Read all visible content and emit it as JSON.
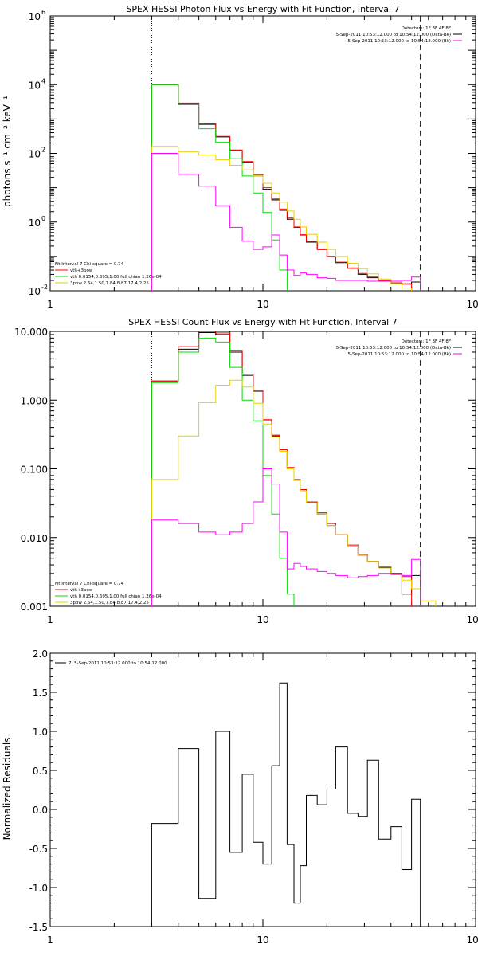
{
  "chart_data": [
    {
      "type": "line",
      "title": "SPEX HESSI Photon Flux vs Energy with Fit Function, Interval 7",
      "ylabel": "photons s⁻¹ cm⁻² keV⁻¹",
      "xlabel": "",
      "x_scale": "log",
      "y_scale": "log",
      "xlim": [
        1,
        100
      ],
      "ylim": [
        0.01,
        1000000
      ],
      "x_ticks": [
        {
          "v": 1,
          "label": "1"
        },
        {
          "v": 10,
          "label": "10"
        },
        {
          "v": 100,
          "label": "100"
        }
      ],
      "y_ticks": [
        {
          "v": 0.01,
          "base": "10",
          "exp": "-2"
        },
        {
          "v": 1,
          "base": "10",
          "exp": "0"
        },
        {
          "v": 100,
          "base": "10",
          "exp": "2"
        },
        {
          "v": 10000,
          "base": "10",
          "exp": "4"
        },
        {
          "v": 1000000,
          "base": "10",
          "exp": "6"
        }
      ],
      "dotted_line_x": 3,
      "dashed_line_x": 55,
      "legend_right": {
        "header": "Detectors: 1F 3F 4F 8F",
        "entries": [
          {
            "label": "5-Sep-2011 10:53:12.000 to 10:54:12.000 (Data-Bk)",
            "color": "#000000"
          },
          {
            "label": "5-Sep-2011 10:53:12.000 to 10:54:12.000 (Bk)",
            "color": "#ff00ff"
          }
        ]
      },
      "legend_left": {
        "header": "Fit Interval  7   Chi-square = 0.74",
        "entries": [
          {
            "label": "vth+3pow",
            "color": "#ff0000"
          },
          {
            "label": "vth 0.0154,0.695,1.00  full chian 1.26e-04",
            "color": "#00dd00"
          },
          {
            "label": "3pow 2.64,1.50,7.84,8.87,17.4,2.25",
            "color": "#e6d200"
          }
        ]
      },
      "bin_edges": [
        3.0,
        4.0,
        5.0,
        6.0,
        7.0,
        8.0,
        9.0,
        10.0,
        11.0,
        12.0,
        13.0,
        14.0,
        15.0,
        16.0,
        18.0,
        20.0,
        22.0,
        25.0,
        28.0,
        31.0,
        35.0,
        40.0,
        45.0,
        50.0,
        55.0,
        65.0,
        80.0
      ],
      "series": [
        {
          "name": "",
          "color": "#000000",
          "values": [
            10000,
            2800,
            700,
            300,
            120,
            55,
            22,
            9,
            4.4,
            2.2,
            1.2,
            0.7,
            0.42,
            0.26,
            0.16,
            0.1,
            0.066,
            0.045,
            0.03,
            0.024,
            0.02,
            0.017,
            0.016,
            0.018
          ]
        },
        {
          "name": "",
          "color": "#ff0000",
          "values": [
            10000,
            2900,
            720,
            310,
            125,
            58,
            24,
            10,
            4.7,
            2.4,
            1.3,
            0.72,
            0.43,
            0.27,
            0.165,
            0.1,
            0.068,
            0.046,
            0.032,
            0.025,
            0.02,
            0.017,
            0.0155
          ]
        },
        {
          "name": "",
          "color": "#00dd00",
          "values": [
            10000,
            2600,
            520,
            210,
            70,
            22,
            7,
            1.9,
            0.3,
            0.04,
            0.004
          ]
        },
        {
          "name": "",
          "color": "#e6d200",
          "values": [
            160,
            110,
            90,
            65,
            45,
            33,
            22,
            13.5,
            7,
            3.8,
            2.1,
            1.2,
            0.72,
            0.44,
            0.26,
            0.16,
            0.1,
            0.063,
            0.044,
            0.031,
            0.022,
            0.016,
            0.012,
            0.009,
            0.007
          ]
        },
        {
          "name": "",
          "color": "#ff00ff",
          "values": [
            100,
            25,
            11,
            3,
            0.7,
            0.28,
            0.16,
            0.19,
            0.42,
            0.11,
            0.04,
            0.028,
            0.033,
            0.03,
            0.024,
            0.023,
            0.02,
            0.02,
            0.02,
            0.019,
            0.019,
            0.019,
            0.02,
            0.025
          ]
        }
      ]
    },
    {
      "type": "line",
      "title": "SPEX HESSI Count Flux vs Energy with Fit Function, Interval 7",
      "ylabel": "",
      "xlabel": "",
      "x_scale": "log",
      "y_scale": "log",
      "xlim": [
        1,
        100
      ],
      "ylim": [
        0.001,
        10
      ],
      "x_ticks": [
        {
          "v": 1,
          "label": "1"
        },
        {
          "v": 10,
          "label": "10"
        },
        {
          "v": 100,
          "label": "100"
        }
      ],
      "y_ticks": [
        {
          "v": 0.001,
          "label": "0.001"
        },
        {
          "v": 0.01,
          "label": "0.010"
        },
        {
          "v": 0.1,
          "label": "0.100"
        },
        {
          "v": 1,
          "label": "1.000"
        },
        {
          "v": 10,
          "label": "10.000"
        }
      ],
      "dotted_line_x": 3,
      "dashed_line_x": 55,
      "legend_right": {
        "header": "Detectors: 1F 3F 4F 8F",
        "entries": [
          {
            "label": "5-Sep-2011 10:53:12.000 to 10:54:12.000 (Data-Bk)",
            "color": "#000000"
          },
          {
            "label": "5-Sep-2011 10:53:12.000 to 10:54:12.000 (Bk)",
            "color": "#ff00ff"
          }
        ]
      },
      "legend_left": {
        "header": "Fit Interval  7   Chi-square = 0.74",
        "entries": [
          {
            "label": "vth+3pow",
            "color": "#ff0000"
          },
          {
            "label": "vth 0.0154,0.695,1.00  full chian 1.26e-04",
            "color": "#00dd00"
          },
          {
            "label": "3pow 2.64,1.50,7.84,8.87,17.4,2.25",
            "color": "#e6d200"
          }
        ]
      },
      "bin_edges": [
        3.0,
        4.0,
        5.0,
        6.0,
        7.0,
        8.0,
        9.0,
        10.0,
        11.0,
        12.0,
        13.0,
        14.0,
        15.0,
        16.0,
        18.0,
        20.0,
        22.0,
        25.0,
        28.0,
        31.0,
        35.0,
        40.0,
        45.0,
        50.0,
        55.0,
        65.0,
        80.0
      ],
      "series": [
        {
          "name": "",
          "color": "#000000",
          "values": [
            1.9,
            5.5,
            9.6,
            9.0,
            5.0,
            2.3,
            1.35,
            0.5,
            0.3,
            0.18,
            0.1,
            0.068,
            0.05,
            0.032,
            0.022,
            0.015,
            0.011,
            0.0075,
            0.0055,
            0.0045,
            0.0037,
            0.003,
            0.0015,
            0.0028
          ]
        },
        {
          "name": "",
          "color": "#ff0000",
          "values": [
            1.9,
            6.0,
            10.2,
            9.5,
            5.3,
            2.4,
            1.4,
            0.52,
            0.31,
            0.19,
            0.105,
            0.07,
            0.05,
            0.033,
            0.023,
            0.016,
            0.011,
            0.0078,
            0.0057,
            0.0045,
            0.0036,
            0.003,
            0.0027
          ]
        },
        {
          "name": "",
          "color": "#00dd00",
          "values": [
            1.8,
            5.0,
            8.0,
            7.0,
            3.0,
            1.0,
            0.5,
            0.08,
            0.022,
            0.005,
            0.0015,
            0.0009
          ]
        },
        {
          "name": "",
          "color": "#e6d200",
          "values": [
            0.07,
            0.3,
            0.92,
            1.65,
            1.95,
            1.55,
            0.9,
            0.45,
            0.29,
            0.18,
            0.1,
            0.068,
            0.048,
            0.032,
            0.022,
            0.015,
            0.011,
            0.0075,
            0.0055,
            0.0045,
            0.0036,
            0.0029,
            0.0024,
            0.0018,
            0.0012,
            0.0009
          ]
        },
        {
          "name": "",
          "color": "#ff00ff",
          "values": [
            0.018,
            0.016,
            0.012,
            0.011,
            0.012,
            0.016,
            0.033,
            0.1,
            0.06,
            0.012,
            0.0035,
            0.0042,
            0.0038,
            0.0035,
            0.0032,
            0.003,
            0.0028,
            0.0026,
            0.0027,
            0.0028,
            0.003,
            0.0029,
            0.0028,
            0.0048
          ]
        }
      ]
    },
    {
      "type": "line",
      "title": "",
      "ylabel": "Normalized Residuals",
      "xlabel": "",
      "x_scale": "log",
      "y_scale": "linear",
      "xlim": [
        1,
        100
      ],
      "ylim": [
        -1.5,
        2.0
      ],
      "x_ticks": [
        {
          "v": 1,
          "label": "1"
        },
        {
          "v": 10,
          "label": "10"
        },
        {
          "v": 100,
          "label": "100"
        }
      ],
      "y_ticks": [
        {
          "v": -1.5,
          "label": "-1.5"
        },
        {
          "v": -1.0,
          "label": "-1.0"
        },
        {
          "v": -0.5,
          "label": "-0.5"
        },
        {
          "v": 0.0,
          "label": "0.0"
        },
        {
          "v": 0.5,
          "label": "0.5"
        },
        {
          "v": 1.0,
          "label": "1.0"
        },
        {
          "v": 1.5,
          "label": "1.5"
        },
        {
          "v": 2.0,
          "label": "2.0"
        }
      ],
      "legend": {
        "label": "7:  5-Sep-2011 10:53:12.000 to 10:54:12.000",
        "color": "#000000"
      },
      "bin_edges": [
        3.0,
        4.0,
        5.0,
        6.0,
        7.0,
        8.0,
        9.0,
        10.0,
        11.0,
        12.0,
        13.0,
        14.0,
        15.0,
        16.0,
        18.0,
        20.0,
        22.0,
        25.0,
        28.0,
        31.0,
        35.0,
        40.0,
        45.0,
        50.0,
        55.0
      ],
      "series": [
        {
          "name": "",
          "color": "#000000",
          "values": [
            -0.18,
            0.78,
            -1.14,
            1.0,
            -0.55,
            0.45,
            -0.42,
            -0.7,
            0.56,
            1.62,
            -0.45,
            -1.2,
            -0.72,
            0.18,
            0.06,
            0.26,
            0.8,
            -0.05,
            -0.09,
            0.63,
            -0.38,
            -0.22,
            -0.77,
            0.13
          ]
        }
      ]
    }
  ]
}
